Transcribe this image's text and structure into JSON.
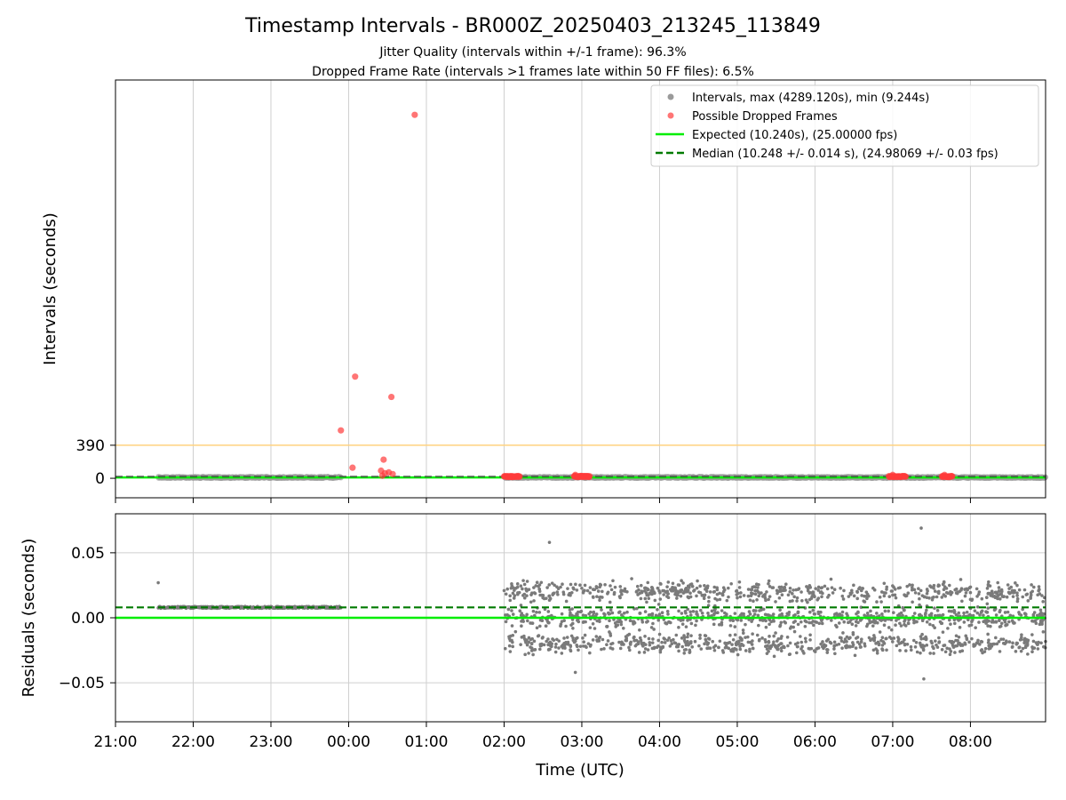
{
  "chart_data": [
    {
      "type": "scatter",
      "panel": "intervals",
      "title": "Timestamp Intervals - BR000Z_20250403_213245_113849",
      "subtitles": [
        "Jitter Quality (intervals within +/-1 frame): 96.3%",
        "Dropped Frame Rate (intervals >1 frames late within 50 FF files): 6.5%"
      ],
      "xlabel": "",
      "ylabel": "Intervals (seconds)",
      "x_tick_labels": [
        "21:00",
        "22:00",
        "23:00",
        "00:00",
        "01:00",
        "02:00",
        "03:00",
        "04:00",
        "05:00",
        "06:00",
        "07:00",
        "08:00"
      ],
      "y_ticks": [
        0,
        390
      ],
      "y_tick_labels": [
        "0",
        "390"
      ],
      "xlim": [
        "2025-04-03T21:00",
        "2025-04-04T08:58"
      ],
      "ylim": [
        -230,
        4700
      ],
      "grid": "x",
      "legend_position": "top-right",
      "threshold_line": {
        "y": 390,
        "color": "#ffd27f"
      },
      "series": [
        {
          "name": "Intervals, max (4289.120s), min (9.244s)",
          "kind": "scatter",
          "color": "#9a9a9a",
          "baseline_value": 10.24,
          "coverage": [
            [
              "2025-04-03T21:33",
              "2025-04-03T23:54"
            ],
            [
              "2025-04-04T02:00",
              "2025-04-04T08:58"
            ]
          ]
        },
        {
          "name": "Possible Dropped Frames",
          "kind": "scatter",
          "color": "#ff3b3b",
          "points": [
            [
              "2025-04-03T23:54",
              565
            ],
            [
              "2025-04-04T00:03",
              125
            ],
            [
              "2025-04-04T00:05",
              1200
            ],
            [
              "2025-04-04T00:25",
              90
            ],
            [
              "2025-04-04T00:26",
              30
            ],
            [
              "2025-04-04T00:27",
              220
            ],
            [
              "2025-04-04T00:28",
              60
            ],
            [
              "2025-04-04T00:31",
              70
            ],
            [
              "2025-04-04T00:33",
              960
            ],
            [
              "2025-04-04T00:34",
              50
            ],
            [
              "2025-04-04T00:51",
              4289.12
            ],
            [
              "2025-04-04T02:55",
              40
            ],
            [
              "2025-04-04T07:00",
              40
            ],
            [
              "2025-04-04T07:40",
              40
            ]
          ],
          "clusters": [
            [
              "2025-04-04T02:00",
              "2025-04-04T02:12",
              15
            ],
            [
              "2025-04-04T02:54",
              "2025-04-04T03:06",
              15
            ],
            [
              "2025-04-04T06:57",
              "2025-04-04T07:10",
              15
            ],
            [
              "2025-04-04T07:38",
              "2025-04-04T07:46",
              15
            ]
          ]
        },
        {
          "name": "Expected (10.240s), (25.00000 fps)",
          "kind": "line",
          "value": 10.24,
          "color": "#00ee00"
        },
        {
          "name": "Median (10.248 +/- 0.014 s), (24.98069 +/- 0.03 fps)",
          "kind": "dashed-line",
          "value": 10.248,
          "color": "#007a00"
        }
      ]
    },
    {
      "type": "scatter",
      "panel": "residuals",
      "xlabel": "Time (UTC)",
      "ylabel": "Residuals (seconds)",
      "x_tick_labels": [
        "21:00",
        "22:00",
        "23:00",
        "00:00",
        "01:00",
        "02:00",
        "03:00",
        "04:00",
        "05:00",
        "06:00",
        "07:00",
        "08:00"
      ],
      "y_ticks": [
        -0.05,
        0.0,
        0.05
      ],
      "y_tick_labels": [
        "−0.05",
        "0.00",
        "0.05"
      ],
      "ylim": [
        -0.08,
        0.08
      ],
      "grid": "both",
      "series": [
        {
          "kind": "scatter",
          "color": "#7a7a7a",
          "segments": [
            {
              "range": [
                "2025-04-03T21:33",
                "2025-04-03T23:54"
              ],
              "level": 0.008
            },
            {
              "range": [
                "2025-04-04T02:00",
                "2025-04-04T08:58"
              ],
              "bands": [
                -0.02,
                0.0,
                0.02
              ],
              "spread": 0.025
            }
          ],
          "outliers": [
            [
              "2025-04-03T21:33",
              0.027
            ],
            [
              "2025-04-04T02:35",
              0.058
            ],
            [
              "2025-04-04T02:55",
              -0.042
            ],
            [
              "2025-04-04T07:22",
              0.069
            ],
            [
              "2025-04-04T07:24",
              -0.047
            ]
          ]
        },
        {
          "kind": "line",
          "value": 0.0,
          "color": "#00ee00"
        },
        {
          "kind": "dashed-line",
          "value": 0.008,
          "color": "#007a00"
        }
      ]
    }
  ]
}
